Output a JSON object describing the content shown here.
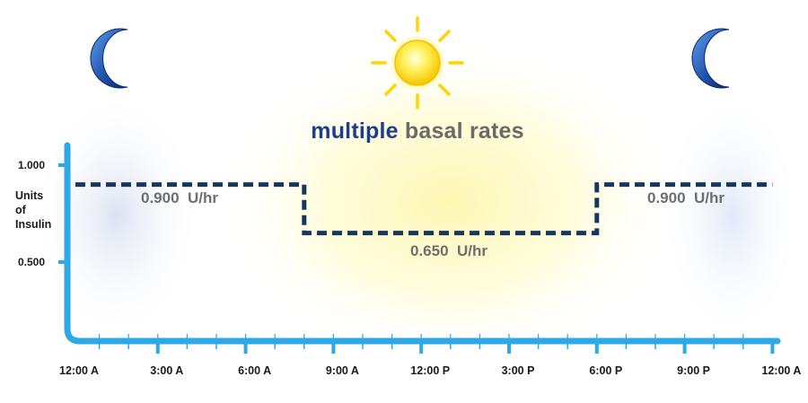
{
  "title": {
    "word1": "multiple",
    "word2": "basal rates"
  },
  "colors": {
    "axis": "#2ea8e6",
    "line": "#17375e",
    "title_accent": "#1b3e8a",
    "label_gray": "#6e6e6e",
    "sun": "#ffd400",
    "moon": "#2b5fc0"
  },
  "icons": {
    "left": "crescent-moon-icon",
    "center": "sun-icon",
    "right": "crescent-moon-icon"
  },
  "chart_data": {
    "type": "line",
    "title": "multiple basal rates",
    "ylabel": "Units of Insulin",
    "ylabel_lines": [
      "Units",
      "of",
      "Insulin"
    ],
    "y_tick_labels": [
      "1.000",
      "0.500"
    ],
    "y_ticks": [
      1.0,
      0.5
    ],
    "x_tick_labels": [
      "12:00 A",
      "3:00 A",
      "6:00 A",
      "9:00 A",
      "12:00 P",
      "3:00 P",
      "6:00 P",
      "9:00 P",
      "12:00 A"
    ],
    "x_ticks": [
      0,
      3,
      6,
      9,
      12,
      15,
      18,
      21,
      24
    ],
    "x_unit": "hours",
    "ylim": [
      0,
      1.0
    ],
    "series": [
      {
        "values": [
          {
            "from": 0,
            "to": 8,
            "rate": 0.9
          },
          {
            "from": 8,
            "to": 18,
            "rate": 0.65
          },
          {
            "from": 18,
            "to": 24,
            "rate": 0.9
          }
        ],
        "line_style": "dashed"
      }
    ],
    "annotations": [
      {
        "text": "0.900  U/hr"
      },
      {
        "text": "0.650  U/hr"
      },
      {
        "text": "0.900  U/hr"
      }
    ]
  }
}
